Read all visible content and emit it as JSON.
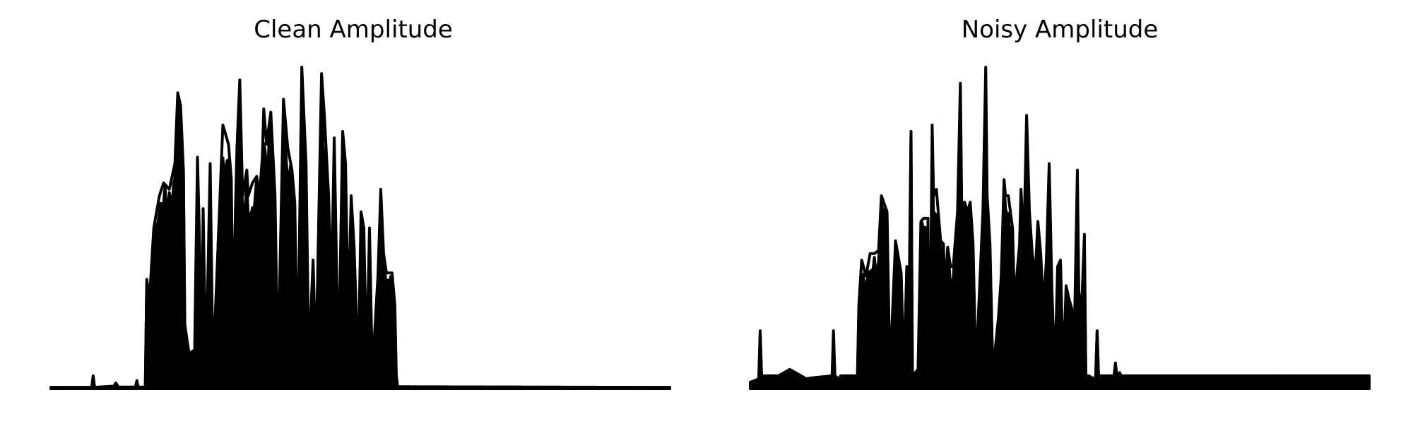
{
  "chart_data": [
    {
      "type": "line",
      "title": "Clean Amplitude",
      "xlabel": "",
      "ylabel": "",
      "axes_visible": false,
      "grid": false,
      "color": "#000000",
      "ylim": [
        0,
        1
      ],
      "num_samples": 440,
      "envelope": [
        [
          0,
          0.004
        ],
        [
          29,
          0.004
        ],
        [
          30,
          0.04
        ],
        [
          31,
          0.004
        ],
        [
          45,
          0.008
        ],
        [
          46,
          0.018
        ],
        [
          48,
          0.005
        ],
        [
          60,
          0.005
        ],
        [
          61,
          0.025
        ],
        [
          62,
          0.005
        ],
        [
          67,
          0.005
        ],
        [
          68,
          0.34
        ],
        [
          70,
          0.28
        ],
        [
          73,
          0.5
        ],
        [
          77,
          0.6
        ],
        [
          80,
          0.64
        ],
        [
          84,
          0.62
        ],
        [
          88,
          0.7
        ],
        [
          90,
          0.92
        ],
        [
          92,
          0.88
        ],
        [
          94,
          0.68
        ],
        [
          95,
          0.2
        ],
        [
          98,
          0.11
        ],
        [
          102,
          0.12
        ],
        [
          104,
          0.72
        ],
        [
          106,
          0.36
        ],
        [
          107,
          0.05
        ],
        [
          108,
          0.56
        ],
        [
          110,
          0.05
        ],
        [
          113,
          0.7
        ],
        [
          115,
          0.05
        ],
        [
          120,
          0.6
        ],
        [
          122,
          0.82
        ],
        [
          126,
          0.76
        ],
        [
          128,
          0.65
        ],
        [
          129,
          0.2
        ],
        [
          132,
          0.75
        ],
        [
          134,
          0.96
        ],
        [
          136,
          0.6
        ],
        [
          139,
          0.68
        ],
        [
          140,
          0.6
        ],
        [
          143,
          0.64
        ],
        [
          146,
          0.66
        ],
        [
          148,
          0.6
        ],
        [
          150,
          0.72
        ],
        [
          151,
          0.87
        ],
        [
          153,
          0.76
        ],
        [
          156,
          0.86
        ],
        [
          159,
          0.6
        ],
        [
          161,
          0.05
        ],
        [
          165,
          0.9
        ],
        [
          168,
          0.75
        ],
        [
          171,
          0.68
        ],
        [
          173,
          0.58
        ],
        [
          175,
          0.05
        ],
        [
          178,
          1.0
        ],
        [
          181,
          0.7
        ],
        [
          183,
          0.08
        ],
        [
          186,
          0.4
        ],
        [
          188,
          0.07
        ],
        [
          192,
          0.98
        ],
        [
          194,
          0.85
        ],
        [
          197,
          0.6
        ],
        [
          199,
          0.3
        ],
        [
          201,
          0.78
        ],
        [
          204,
          0.05
        ],
        [
          207,
          0.8
        ],
        [
          209,
          0.7
        ],
        [
          211,
          0.2
        ],
        [
          213,
          0.6
        ],
        [
          215,
          0.45
        ],
        [
          218,
          0.05
        ],
        [
          220,
          0.55
        ],
        [
          222,
          0.5
        ],
        [
          224,
          0.05
        ],
        [
          226,
          0.5
        ],
        [
          228,
          0.05
        ],
        [
          232,
          0.35
        ],
        [
          234,
          0.62
        ],
        [
          236,
          0.42
        ],
        [
          238,
          0.36
        ],
        [
          240,
          0.36
        ],
        [
          242,
          0.36
        ],
        [
          244,
          0.26
        ],
        [
          245,
          0.04
        ],
        [
          246,
          0.006
        ],
        [
          440,
          0.004
        ]
      ]
    },
    {
      "type": "line",
      "title": "Noisy Amplitude",
      "xlabel": "",
      "ylabel": "",
      "axes_visible": false,
      "grid": false,
      "color": "#000000",
      "ylim": [
        0,
        1
      ],
      "num_samples": 440,
      "envelope": [
        [
          0,
          0.02
        ],
        [
          6,
          0.03
        ],
        [
          7,
          0.18
        ],
        [
          8,
          0.04
        ],
        [
          20,
          0.04
        ],
        [
          28,
          0.06
        ],
        [
          32,
          0.05
        ],
        [
          40,
          0.03
        ],
        [
          34,
          0.03
        ],
        [
          35,
          0.09
        ],
        [
          36,
          0.03
        ],
        [
          58,
          0.04
        ],
        [
          59,
          0.18
        ],
        [
          60,
          0.04
        ],
        [
          63,
          0.03
        ],
        [
          64,
          0.04
        ],
        [
          76,
          0.04
        ],
        [
          77,
          0.26
        ],
        [
          79,
          0.4
        ],
        [
          82,
          0.35
        ],
        [
          85,
          0.42
        ],
        [
          88,
          0.42
        ],
        [
          91,
          0.43
        ],
        [
          93,
          0.6
        ],
        [
          97,
          0.55
        ],
        [
          99,
          0.04
        ],
        [
          103,
          0.46
        ],
        [
          107,
          0.36
        ],
        [
          109,
          0.04
        ],
        [
          111,
          0.38
        ],
        [
          112,
          0.04
        ],
        [
          114,
          0.8
        ],
        [
          115,
          0.04
        ],
        [
          119,
          0.06
        ],
        [
          121,
          0.52
        ],
        [
          123,
          0.53
        ],
        [
          126,
          0.53
        ],
        [
          127,
          0.1
        ],
        [
          128,
          0.32
        ],
        [
          129,
          0.82
        ],
        [
          130,
          0.6
        ],
        [
          132,
          0.62
        ],
        [
          135,
          0.46
        ],
        [
          137,
          0.45
        ],
        [
          138,
          0.3
        ],
        [
          140,
          0.44
        ],
        [
          142,
          0.38
        ],
        [
          144,
          0.38
        ],
        [
          147,
          0.55
        ],
        [
          149,
          0.95
        ],
        [
          150,
          0.55
        ],
        [
          152,
          0.58
        ],
        [
          154,
          0.55
        ],
        [
          156,
          0.58
        ],
        [
          158,
          0.45
        ],
        [
          160,
          0.05
        ],
        [
          165,
          0.55
        ],
        [
          167,
          1.0
        ],
        [
          168,
          0.6
        ],
        [
          170,
          0.45
        ],
        [
          172,
          0.05
        ],
        [
          176,
          0.22
        ],
        [
          178,
          0.35
        ],
        [
          180,
          0.65
        ],
        [
          181,
          0.6
        ],
        [
          183,
          0.6
        ],
        [
          186,
          0.5
        ],
        [
          188,
          0.15
        ],
        [
          189,
          0.35
        ],
        [
          191,
          0.45
        ],
        [
          192,
          0.62
        ],
        [
          194,
          0.45
        ],
        [
          196,
          0.85
        ],
        [
          198,
          0.55
        ],
        [
          200,
          0.42
        ],
        [
          202,
          0.35
        ],
        [
          204,
          0.52
        ],
        [
          206,
          0.42
        ],
        [
          208,
          0.25
        ],
        [
          210,
          0.4
        ],
        [
          212,
          0.7
        ],
        [
          214,
          0.3
        ],
        [
          216,
          0.05
        ],
        [
          218,
          0.38
        ],
        [
          220,
          0.4
        ],
        [
          222,
          0.05
        ],
        [
          224,
          0.32
        ],
        [
          226,
          0.28
        ],
        [
          228,
          0.25
        ],
        [
          230,
          0.2
        ],
        [
          232,
          0.68
        ],
        [
          233,
          0.3
        ],
        [
          235,
          0.25
        ],
        [
          237,
          0.48
        ],
        [
          238,
          0.04
        ],
        [
          240,
          0.04
        ],
        [
          244,
          0.03
        ],
        [
          245,
          0.04
        ],
        [
          246,
          0.18
        ],
        [
          247,
          0.04
        ],
        [
          258,
          0.04
        ],
        [
          259,
          0.08
        ],
        [
          260,
          0.04
        ],
        [
          262,
          0.05
        ],
        [
          263,
          0.04
        ],
        [
          440,
          0.04
        ]
      ]
    }
  ]
}
